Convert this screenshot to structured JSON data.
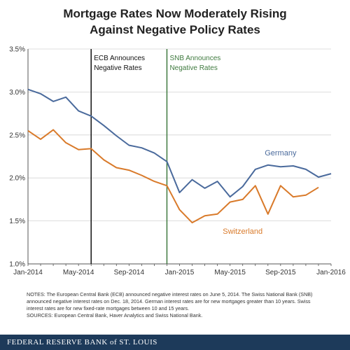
{
  "title_line1": "Mortgage Rates Now Moderately Rising",
  "title_line2": "Against Negative Policy Rates",
  "notes": {
    "line1": "NOTES: The European Central Bank (ECB) announced negative interest rates on June 5, 2014. The Swiss National Bank (SNB)",
    "line2": "announced negative interest rates on Dec. 18, 2014. German interest rates are for new mortgages greater than 10 years. Swiss",
    "line3": "interest rates are for new fixed-rate mortgages between 10 and 15 years.",
    "line4": "SOURCES: European Central Bank, Haver Analytics and Swiss National Bank."
  },
  "footer": "FEDERAL RESERVE BANK of ST. LOUIS",
  "chart_data": {
    "type": "line",
    "x": [
      "2014-01",
      "2014-02",
      "2014-03",
      "2014-04",
      "2014-05",
      "2014-06",
      "2014-07",
      "2014-08",
      "2014-09",
      "2014-10",
      "2014-11",
      "2014-12",
      "2015-01",
      "2015-02",
      "2015-03",
      "2015-04",
      "2015-05",
      "2015-06",
      "2015-07",
      "2015-08",
      "2015-09",
      "2015-10",
      "2015-11",
      "2015-12",
      "2016-01"
    ],
    "x_ticks": [
      "Jan-2014",
      "May-2014",
      "Sep-2014",
      "Jan-2015",
      "May-2015",
      "Sep-2015",
      "Jan-2016"
    ],
    "y_ticks": [
      "1.0%",
      "1.5%",
      "2.0%",
      "2.5%",
      "3.0%",
      "3.5%"
    ],
    "ylim": [
      1.0,
      3.5
    ],
    "grid": true,
    "series": [
      {
        "name": "Germany",
        "color": "#4a6a9c",
        "values": [
          3.03,
          2.98,
          2.89,
          2.94,
          2.78,
          2.72,
          2.61,
          2.49,
          2.38,
          2.35,
          2.29,
          2.19,
          1.83,
          1.98,
          1.88,
          1.96,
          1.78,
          1.9,
          2.1,
          2.15,
          2.13,
          2.14,
          2.1,
          2.01,
          2.05
        ]
      },
      {
        "name": "Switzerland",
        "color": "#d97a2a",
        "values": [
          2.55,
          2.45,
          2.56,
          2.41,
          2.33,
          2.34,
          2.21,
          2.12,
          2.09,
          2.03,
          1.96,
          1.91,
          1.63,
          1.48,
          1.56,
          1.58,
          1.72,
          1.75,
          1.91,
          1.58,
          1.91,
          1.78,
          1.8,
          1.89,
          null
        ]
      }
    ],
    "annotations": [
      {
        "date": "2014-06",
        "line1": "ECB Announces",
        "line2": "Negative Rates",
        "color": "#111111"
      },
      {
        "date": "2014-12",
        "line1": "SNB Announces",
        "line2": "Negative Rates",
        "color": "#3f7a3f"
      }
    ]
  }
}
